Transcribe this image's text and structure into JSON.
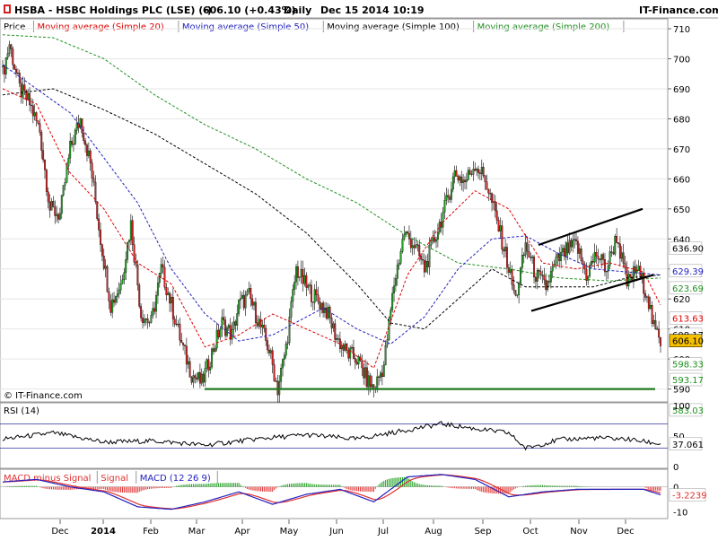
{
  "header": {
    "symbol_text": "HSBA - HSBC Holdings PLC (LSE) (-)",
    "price_text": "606.10 (+0.43%)",
    "period_text": "Daily",
    "date_text": "Dec 15 2014 10:19",
    "site": "IT-Finance.com"
  },
  "legend": [
    {
      "label": "Price",
      "color": "#000000"
    },
    {
      "label": "Moving average (Simple 20)",
      "color": "#e00000"
    },
    {
      "label": "Moving average (Simple 50)",
      "color": "#2020c0"
    },
    {
      "label": "Moving average (Simple 100)",
      "color": "#000000"
    },
    {
      "label": "Moving average (Simple 200)",
      "color": "#209020"
    }
  ],
  "watermark": "© IT-Finance.com",
  "rsi_label": "RSI (14)",
  "macd_legend": [
    {
      "label": "MACD minus Signal",
      "color": "#e03030"
    },
    {
      "label": "Signal",
      "color": "#e03030"
    },
    {
      "label": "MACD (12 26 9)",
      "color": "#2020c0"
    }
  ],
  "colors": {
    "up": "#20a020",
    "down": "#d02020",
    "support": "#207a20",
    "price_box": "#f5c000"
  },
  "chart_data": [
    {
      "type": "candlestick",
      "title": "HSBA - HSBC Holdings PLC (LSE) (-)",
      "ylim": [
        586,
        713
      ],
      "y_ticks": [
        590,
        600,
        610,
        620,
        630,
        640,
        650,
        660,
        670,
        680,
        690,
        700,
        710
      ],
      "x_ticks": [
        "Dec",
        "2014",
        "Feb",
        "Mar",
        "Apr",
        "May",
        "Jun",
        "Jul",
        "Aug",
        "Sep",
        "Oct",
        "Nov",
        "Dec"
      ],
      "price_keyframes": [
        [
          0,
          695
        ],
        [
          4,
          705
        ],
        [
          10,
          690
        ],
        [
          16,
          685
        ],
        [
          22,
          676
        ],
        [
          28,
          650
        ],
        [
          34,
          648
        ],
        [
          40,
          670
        ],
        [
          46,
          680
        ],
        [
          52,
          665
        ],
        [
          58,
          640
        ],
        [
          64,
          618
        ],
        [
          70,
          625
        ],
        [
          76,
          645
        ],
        [
          82,
          615
        ],
        [
          88,
          612
        ],
        [
          94,
          630
        ],
        [
          100,
          618
        ],
        [
          106,
          605
        ],
        [
          112,
          595
        ],
        [
          118,
          592
        ],
        [
          124,
          602
        ],
        [
          130,
          612
        ],
        [
          136,
          608
        ],
        [
          140,
          618
        ],
        [
          146,
          621
        ],
        [
          152,
          612
        ],
        [
          158,
          603
        ],
        [
          163,
          590
        ],
        [
          168,
          604
        ],
        [
          174,
          630
        ],
        [
          180,
          624
        ],
        [
          186,
          620
        ],
        [
          192,
          616
        ],
        [
          198,
          607
        ],
        [
          204,
          602
        ],
        [
          210,
          600
        ],
        [
          216,
          593
        ],
        [
          220,
          590
        ],
        [
          226,
          598
        ],
        [
          232,
          625
        ],
        [
          238,
          642
        ],
        [
          244,
          638
        ],
        [
          250,
          630
        ],
        [
          256,
          640
        ],
        [
          262,
          650
        ],
        [
          268,
          662
        ],
        [
          274,
          659
        ],
        [
          280,
          665
        ],
        [
          286,
          660
        ],
        [
          292,
          648
        ],
        [
          298,
          635
        ],
        [
          304,
          620
        ],
        [
          310,
          638
        ],
        [
          316,
          628
        ],
        [
          322,
          624
        ],
        [
          328,
          632
        ],
        [
          334,
          636
        ],
        [
          340,
          638
        ],
        [
          346,
          628
        ],
        [
          352,
          635
        ],
        [
          358,
          630
        ],
        [
          364,
          641
        ],
        [
          370,
          625
        ],
        [
          376,
          630
        ],
        [
          382,
          622
        ],
        [
          386,
          610
        ],
        [
          390,
          606
        ]
      ],
      "ma20_keyframes": [
        [
          0,
          690
        ],
        [
          20,
          685
        ],
        [
          40,
          662
        ],
        [
          60,
          650
        ],
        [
          80,
          632
        ],
        [
          100,
          625
        ],
        [
          120,
          604
        ],
        [
          140,
          608
        ],
        [
          160,
          615
        ],
        [
          180,
          610
        ],
        [
          200,
          605
        ],
        [
          220,
          597
        ],
        [
          240,
          628
        ],
        [
          260,
          645
        ],
        [
          280,
          656
        ],
        [
          300,
          650
        ],
        [
          320,
          632
        ],
        [
          340,
          630
        ],
        [
          360,
          632
        ],
        [
          380,
          629
        ],
        [
          390,
          618
        ]
      ],
      "ma50_keyframes": [
        [
          0,
          698
        ],
        [
          40,
          682
        ],
        [
          80,
          652
        ],
        [
          100,
          630
        ],
        [
          120,
          615
        ],
        [
          140,
          606
        ],
        [
          160,
          608
        ],
        [
          190,
          617
        ],
        [
          210,
          610
        ],
        [
          230,
          605
        ],
        [
          250,
          614
        ],
        [
          270,
          630
        ],
        [
          290,
          640
        ],
        [
          310,
          641
        ],
        [
          330,
          635
        ],
        [
          350,
          630
        ],
        [
          370,
          629
        ],
        [
          390,
          628
        ]
      ],
      "ma100_keyframes": [
        [
          0,
          688
        ],
        [
          30,
          690
        ],
        [
          60,
          683
        ],
        [
          90,
          675
        ],
        [
          120,
          665
        ],
        [
          150,
          655
        ],
        [
          180,
          642
        ],
        [
          210,
          625
        ],
        [
          230,
          612
        ],
        [
          250,
          610
        ],
        [
          270,
          620
        ],
        [
          290,
          630
        ],
        [
          310,
          624
        ],
        [
          330,
          624
        ],
        [
          350,
          624
        ],
        [
          370,
          627
        ],
        [
          390,
          628
        ]
      ],
      "ma200_keyframes": [
        [
          0,
          708
        ],
        [
          30,
          707
        ],
        [
          60,
          700
        ],
        [
          90,
          688
        ],
        [
          120,
          678
        ],
        [
          150,
          670
        ],
        [
          180,
          660
        ],
        [
          210,
          652
        ],
        [
          240,
          641
        ],
        [
          270,
          632
        ],
        [
          300,
          630
        ],
        [
          330,
          627
        ],
        [
          360,
          626
        ],
        [
          390,
          627
        ]
      ],
      "channel_upper": [
        [
          600,
          638
        ],
        [
          716,
          650
        ]
      ],
      "channel_lower": [
        [
          592,
          616
        ],
        [
          728,
          628
        ]
      ],
      "support_level": 590,
      "price_labels": [
        {
          "text": "636.90",
          "value": 636.9,
          "color": "#000000"
        },
        {
          "text": "629.39",
          "value": 629.39,
          "color": "#2020c0"
        },
        {
          "text": "623.69",
          "value": 623.69,
          "color": "#209020"
        },
        {
          "text": "613.63",
          "value": 613.63,
          "color": "#e00000"
        },
        {
          "text": "608.17",
          "value": 608.17,
          "color": "#000000"
        },
        {
          "text": "606.10",
          "value": 606.1,
          "color": "#000000",
          "highlight": true
        },
        {
          "text": "598.33",
          "value": 598.33,
          "color": "#209020"
        },
        {
          "text": "593.17",
          "value": 593.17,
          "color": "#209020"
        },
        {
          "text": "583.03",
          "value": 583.03,
          "color": "#209020"
        }
      ]
    },
    {
      "type": "line",
      "title": "RSI (14)",
      "ylim": [
        0,
        100
      ],
      "y_ticks": [
        0,
        50,
        100
      ],
      "levels": [
        30,
        70
      ],
      "current": "37.061",
      "keyframes": [
        [
          0,
          45
        ],
        [
          30,
          55
        ],
        [
          60,
          40
        ],
        [
          90,
          42
        ],
        [
          120,
          35
        ],
        [
          150,
          45
        ],
        [
          180,
          52
        ],
        [
          210,
          45
        ],
        [
          240,
          60
        ],
        [
          260,
          70
        ],
        [
          280,
          62
        ],
        [
          300,
          55
        ],
        [
          310,
          30
        ],
        [
          330,
          44
        ],
        [
          350,
          47
        ],
        [
          370,
          45
        ],
        [
          390,
          37
        ]
      ]
    },
    {
      "type": "bar+line",
      "title": "MACD (12 26 9)",
      "y_ticks": [
        0,
        -10
      ],
      "ylim": [
        -12,
        6
      ],
      "current": "-3.2239",
      "macd_keyframes": [
        [
          0,
          2
        ],
        [
          20,
          3
        ],
        [
          40,
          0
        ],
        [
          60,
          -2
        ],
        [
          80,
          -8
        ],
        [
          100,
          -9
        ],
        [
          120,
          -6
        ],
        [
          140,
          -2
        ],
        [
          160,
          -7
        ],
        [
          180,
          -3
        ],
        [
          200,
          -1
        ],
        [
          220,
          -6
        ],
        [
          240,
          4
        ],
        [
          260,
          5
        ],
        [
          280,
          3
        ],
        [
          300,
          -4
        ],
        [
          320,
          -2
        ],
        [
          340,
          -1
        ],
        [
          360,
          -1
        ],
        [
          380,
          -1
        ],
        [
          390,
          -3.2
        ]
      ]
    }
  ]
}
